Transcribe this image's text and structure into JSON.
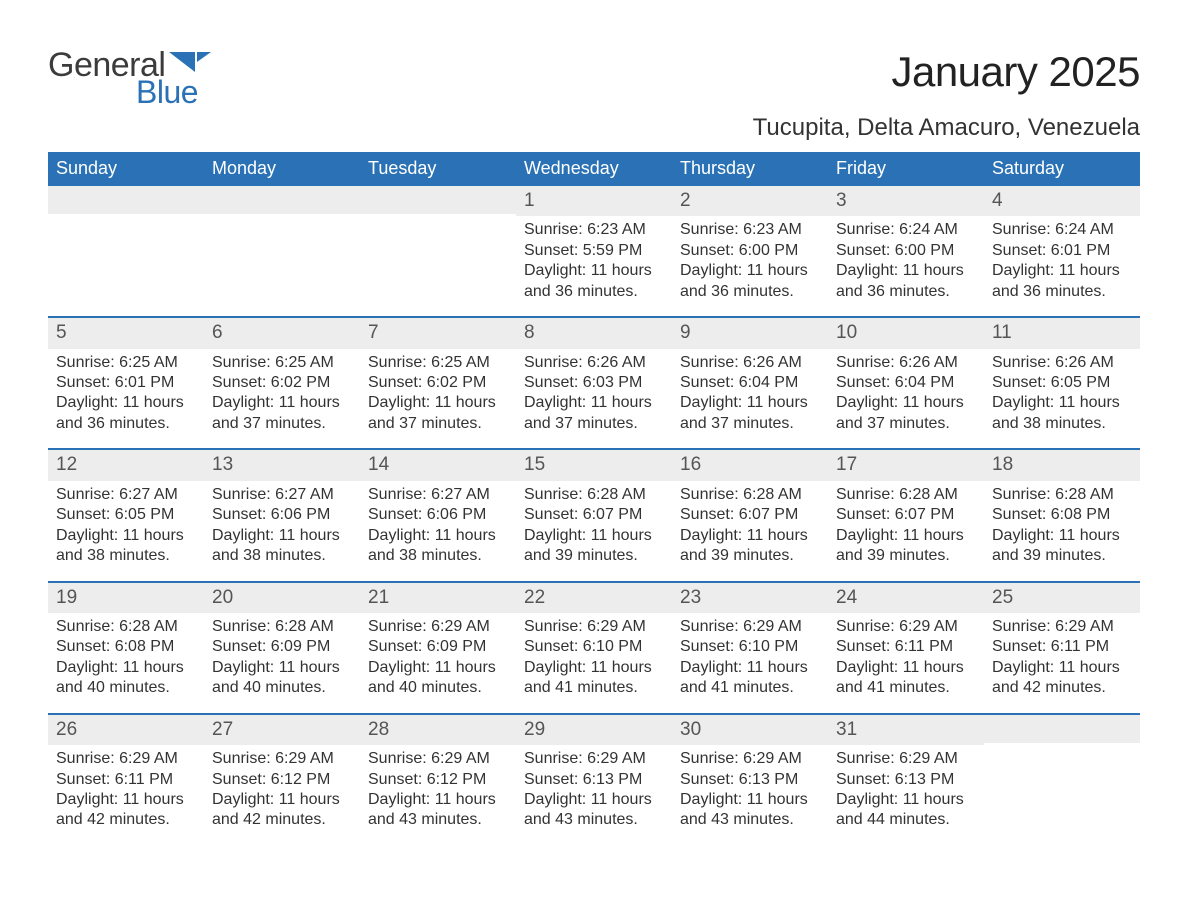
{
  "logo": {
    "text1": "General",
    "text2": "Blue",
    "flag_color": "#2a72b5"
  },
  "title": "January 2025",
  "location": "Tucupita, Delta Amacuro, Venezuela",
  "colors": {
    "header_bg": "#2a72b5",
    "header_text": "#ffffff",
    "daynum_bg": "#ededed",
    "week_border": "#2a72b5",
    "body_text": "#333333",
    "page_bg": "#ffffff"
  },
  "typography": {
    "title_fontsize": 42,
    "location_fontsize": 24,
    "header_fontsize": 18,
    "daynum_fontsize": 19,
    "body_fontsize": 16
  },
  "day_headers": [
    "Sunday",
    "Monday",
    "Tuesday",
    "Wednesday",
    "Thursday",
    "Friday",
    "Saturday"
  ],
  "labels": {
    "sunrise": "Sunrise:",
    "sunset": "Sunset:",
    "daylight": "Daylight:"
  },
  "weeks": [
    [
      null,
      null,
      null,
      {
        "n": "1",
        "sunrise": "6:23 AM",
        "sunset": "5:59 PM",
        "daylight": "11 hours and 36 minutes."
      },
      {
        "n": "2",
        "sunrise": "6:23 AM",
        "sunset": "6:00 PM",
        "daylight": "11 hours and 36 minutes."
      },
      {
        "n": "3",
        "sunrise": "6:24 AM",
        "sunset": "6:00 PM",
        "daylight": "11 hours and 36 minutes."
      },
      {
        "n": "4",
        "sunrise": "6:24 AM",
        "sunset": "6:01 PM",
        "daylight": "11 hours and 36 minutes."
      }
    ],
    [
      {
        "n": "5",
        "sunrise": "6:25 AM",
        "sunset": "6:01 PM",
        "daylight": "11 hours and 36 minutes."
      },
      {
        "n": "6",
        "sunrise": "6:25 AM",
        "sunset": "6:02 PM",
        "daylight": "11 hours and 37 minutes."
      },
      {
        "n": "7",
        "sunrise": "6:25 AM",
        "sunset": "6:02 PM",
        "daylight": "11 hours and 37 minutes."
      },
      {
        "n": "8",
        "sunrise": "6:26 AM",
        "sunset": "6:03 PM",
        "daylight": "11 hours and 37 minutes."
      },
      {
        "n": "9",
        "sunrise": "6:26 AM",
        "sunset": "6:04 PM",
        "daylight": "11 hours and 37 minutes."
      },
      {
        "n": "10",
        "sunrise": "6:26 AM",
        "sunset": "6:04 PM",
        "daylight": "11 hours and 37 minutes."
      },
      {
        "n": "11",
        "sunrise": "6:26 AM",
        "sunset": "6:05 PM",
        "daylight": "11 hours and 38 minutes."
      }
    ],
    [
      {
        "n": "12",
        "sunrise": "6:27 AM",
        "sunset": "6:05 PM",
        "daylight": "11 hours and 38 minutes."
      },
      {
        "n": "13",
        "sunrise": "6:27 AM",
        "sunset": "6:06 PM",
        "daylight": "11 hours and 38 minutes."
      },
      {
        "n": "14",
        "sunrise": "6:27 AM",
        "sunset": "6:06 PM",
        "daylight": "11 hours and 38 minutes."
      },
      {
        "n": "15",
        "sunrise": "6:28 AM",
        "sunset": "6:07 PM",
        "daylight": "11 hours and 39 minutes."
      },
      {
        "n": "16",
        "sunrise": "6:28 AM",
        "sunset": "6:07 PM",
        "daylight": "11 hours and 39 minutes."
      },
      {
        "n": "17",
        "sunrise": "6:28 AM",
        "sunset": "6:07 PM",
        "daylight": "11 hours and 39 minutes."
      },
      {
        "n": "18",
        "sunrise": "6:28 AM",
        "sunset": "6:08 PM",
        "daylight": "11 hours and 39 minutes."
      }
    ],
    [
      {
        "n": "19",
        "sunrise": "6:28 AM",
        "sunset": "6:08 PM",
        "daylight": "11 hours and 40 minutes."
      },
      {
        "n": "20",
        "sunrise": "6:28 AM",
        "sunset": "6:09 PM",
        "daylight": "11 hours and 40 minutes."
      },
      {
        "n": "21",
        "sunrise": "6:29 AM",
        "sunset": "6:09 PM",
        "daylight": "11 hours and 40 minutes."
      },
      {
        "n": "22",
        "sunrise": "6:29 AM",
        "sunset": "6:10 PM",
        "daylight": "11 hours and 41 minutes."
      },
      {
        "n": "23",
        "sunrise": "6:29 AM",
        "sunset": "6:10 PM",
        "daylight": "11 hours and 41 minutes."
      },
      {
        "n": "24",
        "sunrise": "6:29 AM",
        "sunset": "6:11 PM",
        "daylight": "11 hours and 41 minutes."
      },
      {
        "n": "25",
        "sunrise": "6:29 AM",
        "sunset": "6:11 PM",
        "daylight": "11 hours and 42 minutes."
      }
    ],
    [
      {
        "n": "26",
        "sunrise": "6:29 AM",
        "sunset": "6:11 PM",
        "daylight": "11 hours and 42 minutes."
      },
      {
        "n": "27",
        "sunrise": "6:29 AM",
        "sunset": "6:12 PM",
        "daylight": "11 hours and 42 minutes."
      },
      {
        "n": "28",
        "sunrise": "6:29 AM",
        "sunset": "6:12 PM",
        "daylight": "11 hours and 43 minutes."
      },
      {
        "n": "29",
        "sunrise": "6:29 AM",
        "sunset": "6:13 PM",
        "daylight": "11 hours and 43 minutes."
      },
      {
        "n": "30",
        "sunrise": "6:29 AM",
        "sunset": "6:13 PM",
        "daylight": "11 hours and 43 minutes."
      },
      {
        "n": "31",
        "sunrise": "6:29 AM",
        "sunset": "6:13 PM",
        "daylight": "11 hours and 44 minutes."
      },
      null
    ]
  ]
}
